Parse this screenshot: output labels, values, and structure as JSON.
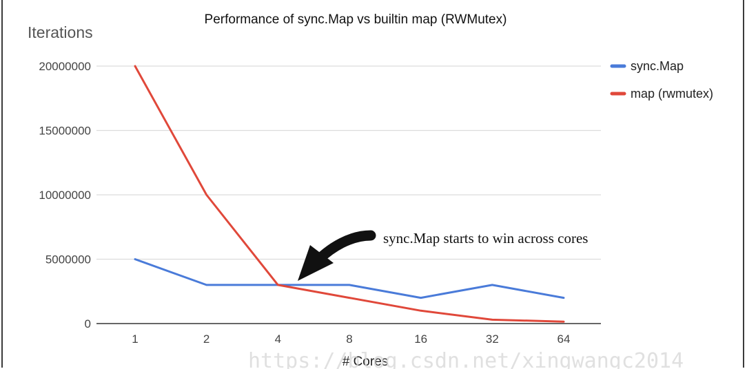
{
  "chart_data": {
    "type": "line",
    "title": "Performance of sync.Map vs builtin map (RWMutex)",
    "xlabel": "# Cores",
    "ylabel": "Iterations",
    "categories": [
      "1",
      "2",
      "4",
      "8",
      "16",
      "32",
      "64"
    ],
    "ylim": [
      0,
      20000000
    ],
    "yticks": [
      "0",
      "5000000",
      "10000000",
      "15000000",
      "20000000"
    ],
    "grid": true,
    "legend_position": "right",
    "series": [
      {
        "name": "sync.Map",
        "color": "#4a7bd9",
        "values": [
          5000000,
          3000000,
          3000000,
          3000000,
          2000000,
          3000000,
          2000000
        ]
      },
      {
        "name": "map (rwmutex)",
        "color": "#e0483a",
        "values": [
          20000000,
          10000000,
          3000000,
          2000000,
          1000000,
          300000,
          150000
        ]
      }
    ],
    "annotation": "sync.Map starts to win across cores"
  },
  "watermark": "https://blog.csdn.net/xingwangc2014"
}
